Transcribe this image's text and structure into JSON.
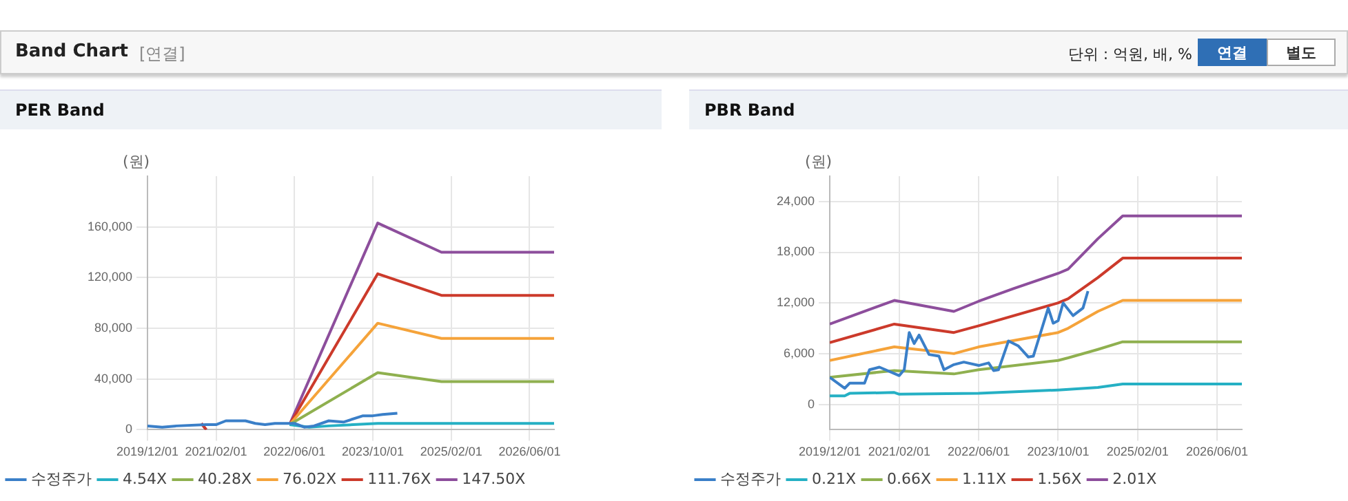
{
  "chart_data": [
    {
      "type": "line",
      "title": "PER Band",
      "ylabel": "(원)",
      "grid": true,
      "legend": "bottom",
      "marker": "none",
      "line_style": "solid",
      "annotations": [
        "Band Chart",
        "[연결]",
        "단위 : 억원, 배, %",
        "연결",
        "별도"
      ],
      "xlim": [
        "2019-12-01",
        "2026-11-01"
      ],
      "xticks": [
        {
          "value": "2019-12-01",
          "label": "2019/12/01"
        },
        {
          "value": "2021-02-01",
          "label": "2021/02/01"
        },
        {
          "value": "2022-06-01",
          "label": "2022/06/01"
        },
        {
          "value": "2023-10-01",
          "label": "2023/10/01"
        },
        {
          "value": "2025-02-01",
          "label": "2025/02/01"
        },
        {
          "value": "2026-06-01",
          "label": "2026/06/01"
        }
      ],
      "ylim": [
        0,
        200000
      ],
      "yticks": [
        {
          "value": 0,
          "label": "0"
        },
        {
          "value": 40000,
          "label": "40,000"
        },
        {
          "value": 80000,
          "label": "80,000"
        },
        {
          "value": 120000,
          "label": "120,000"
        },
        {
          "value": 160000,
          "label": "160,000"
        }
      ],
      "series": [
        {
          "name": "수정주가",
          "color": "#3a7fc8",
          "x": [
            "2019-12-01",
            "2020-03-01",
            "2020-06-01",
            "2020-12-01",
            "2021-02-01",
            "2021-04-01",
            "2021-08-01",
            "2021-10-01",
            "2021-12-01",
            "2022-02-01",
            "2022-06-01",
            "2022-08-01",
            "2022-10-01",
            "2023-01-01",
            "2023-04-01",
            "2023-08-01",
            "2023-10-01",
            "2023-12-01",
            "2024-03-01"
          ],
          "values": [
            3000,
            2000,
            3000,
            4000,
            4000,
            7000,
            7000,
            5000,
            4000,
            5000,
            5000,
            2000,
            3000,
            7000,
            6000,
            11000,
            11000,
            12000,
            13000
          ]
        },
        {
          "name": "4.54X",
          "color": "#25b0c4",
          "x": [
            "2022-05-01",
            "2022-09-01",
            "2023-01-01",
            "2023-06-01",
            "2023-11-01",
            "2024-12-01",
            "2026-11-01"
          ],
          "values": [
            4000,
            2000,
            3000,
            4000,
            5000,
            5000,
            5000
          ]
        },
        {
          "name": "40.28X",
          "color": "#8fb04f",
          "x": [
            "2022-05-01",
            "2023-11-01",
            "2024-12-01",
            "2026-11-01"
          ],
          "values": [
            4000,
            45000,
            38000,
            38000
          ]
        },
        {
          "name": "76.02X",
          "color": "#f5a33a",
          "x": [
            "2022-05-01",
            "2023-11-01",
            "2024-12-01",
            "2026-11-01"
          ],
          "values": [
            4000,
            84000,
            72000,
            72000
          ]
        },
        {
          "name": "111.76X",
          "color": "#cc3a2b",
          "x": [
            "2020-11-01",
            "2020-12-01",
            "2021-01-01",
            "2022-05-01",
            "2023-11-01",
            "2024-12-01",
            "2026-11-01"
          ],
          "values": [
            5000,
            0,
            null,
            4000,
            123000,
            106000,
            106000
          ]
        },
        {
          "name": "147.50X",
          "color": "#8d4e9c",
          "x": [
            "2020-11-01",
            "2020-12-01",
            "2021-01-01",
            "2022-05-01",
            "2023-11-01",
            "2024-12-01",
            "2026-11-01"
          ],
          "values": [
            5000,
            0,
            null,
            4000,
            163000,
            140000,
            140000
          ]
        }
      ]
    },
    {
      "type": "line",
      "title": "PBR Band",
      "ylabel": "(원)",
      "grid": true,
      "legend": "bottom",
      "marker": "none",
      "line_style": "solid",
      "xlim": [
        "2019-12-01",
        "2026-11-01"
      ],
      "xticks": [
        {
          "value": "2019-12-01",
          "label": "2019/12/01"
        },
        {
          "value": "2021-02-01",
          "label": "2021/02/01"
        },
        {
          "value": "2022-06-01",
          "label": "2022/06/01"
        },
        {
          "value": "2023-10-01",
          "label": "2023/10/01"
        },
        {
          "value": "2025-02-01",
          "label": "2025/02/01"
        },
        {
          "value": "2026-06-01",
          "label": "2026/06/01"
        }
      ],
      "ylim": [
        -3000,
        27000
      ],
      "yticks": [
        {
          "value": 0,
          "label": "0"
        },
        {
          "value": 6000,
          "label": "6,000"
        },
        {
          "value": 12000,
          "label": "12,000"
        },
        {
          "value": 18000,
          "label": "18,000"
        },
        {
          "value": 24000,
          "label": "24,000"
        }
      ],
      "series": [
        {
          "name": "수정주가",
          "color": "#3a7fc8",
          "x": [
            "2019-12-01",
            "2020-03-01",
            "2020-04-01",
            "2020-07-01",
            "2020-08-01",
            "2020-10-01",
            "2021-02-01",
            "2021-03-01",
            "2021-04-01",
            "2021-05-01",
            "2021-06-01",
            "2021-08-01",
            "2021-10-01",
            "2021-11-01",
            "2022-01-01",
            "2022-03-01",
            "2022-06-01",
            "2022-08-01",
            "2022-09-01",
            "2022-10-01",
            "2022-12-01",
            "2023-02-01",
            "2023-04-01",
            "2023-05-01",
            "2023-08-01",
            "2023-09-01",
            "2023-10-01",
            "2023-11-01",
            "2024-01-01",
            "2024-03-01",
            "2024-04-01"
          ],
          "values": [
            3200,
            1900,
            2500,
            2500,
            4100,
            4400,
            3400,
            4100,
            8500,
            7200,
            8200,
            5900,
            5700,
            4100,
            4700,
            5000,
            4600,
            4900,
            4000,
            4100,
            7500,
            6900,
            5600,
            5700,
            11400,
            9600,
            9900,
            12000,
            10500,
            11400,
            13400
          ]
        },
        {
          "name": "0.21X",
          "color": "#25b0c4",
          "x": [
            "2019-12-01",
            "2020-03-01",
            "2020-04-01",
            "2021-01-01",
            "2021-02-01",
            "2022-06-01",
            "2023-10-01",
            "2024-06-01",
            "2024-11-01",
            "2026-11-01"
          ],
          "values": [
            1000,
            1000,
            1300,
            1400,
            1200,
            1300,
            1700,
            2000,
            2400,
            2400
          ]
        },
        {
          "name": "0.66X",
          "color": "#8fb04f",
          "x": [
            "2019-12-01",
            "2021-01-01",
            "2022-01-01",
            "2022-06-01",
            "2023-10-01",
            "2023-12-01",
            "2024-06-01",
            "2024-11-01",
            "2026-11-01"
          ],
          "values": [
            3200,
            4000,
            3600,
            4100,
            5200,
            5500,
            6500,
            7400,
            7400
          ]
        },
        {
          "name": "1.11X",
          "color": "#f5a33a",
          "x": [
            "2019-12-01",
            "2021-01-01",
            "2022-01-01",
            "2022-06-01",
            "2023-10-01",
            "2023-12-01",
            "2024-06-01",
            "2024-11-01",
            "2026-11-01"
          ],
          "values": [
            5200,
            6800,
            6000,
            6800,
            8500,
            9000,
            11000,
            12300,
            12300
          ]
        },
        {
          "name": "1.56X",
          "color": "#cc3a2b",
          "x": [
            "2019-12-01",
            "2021-01-01",
            "2022-01-01",
            "2022-06-01",
            "2023-10-01",
            "2023-12-01",
            "2024-06-01",
            "2024-11-01",
            "2026-11-01"
          ],
          "values": [
            7300,
            9500,
            8500,
            9300,
            12000,
            12500,
            15000,
            17300,
            17300
          ]
        },
        {
          "name": "2.01X",
          "color": "#8d4e9c",
          "x": [
            "2019-12-01",
            "2021-01-01",
            "2022-01-01",
            "2022-06-01",
            "2023-01-01",
            "2023-10-01",
            "2023-12-01",
            "2024-06-01",
            "2024-11-01",
            "2026-11-01"
          ],
          "values": [
            9500,
            12300,
            11000,
            12200,
            13700,
            15500,
            16000,
            19600,
            22300,
            22300
          ]
        }
      ]
    }
  ]
}
